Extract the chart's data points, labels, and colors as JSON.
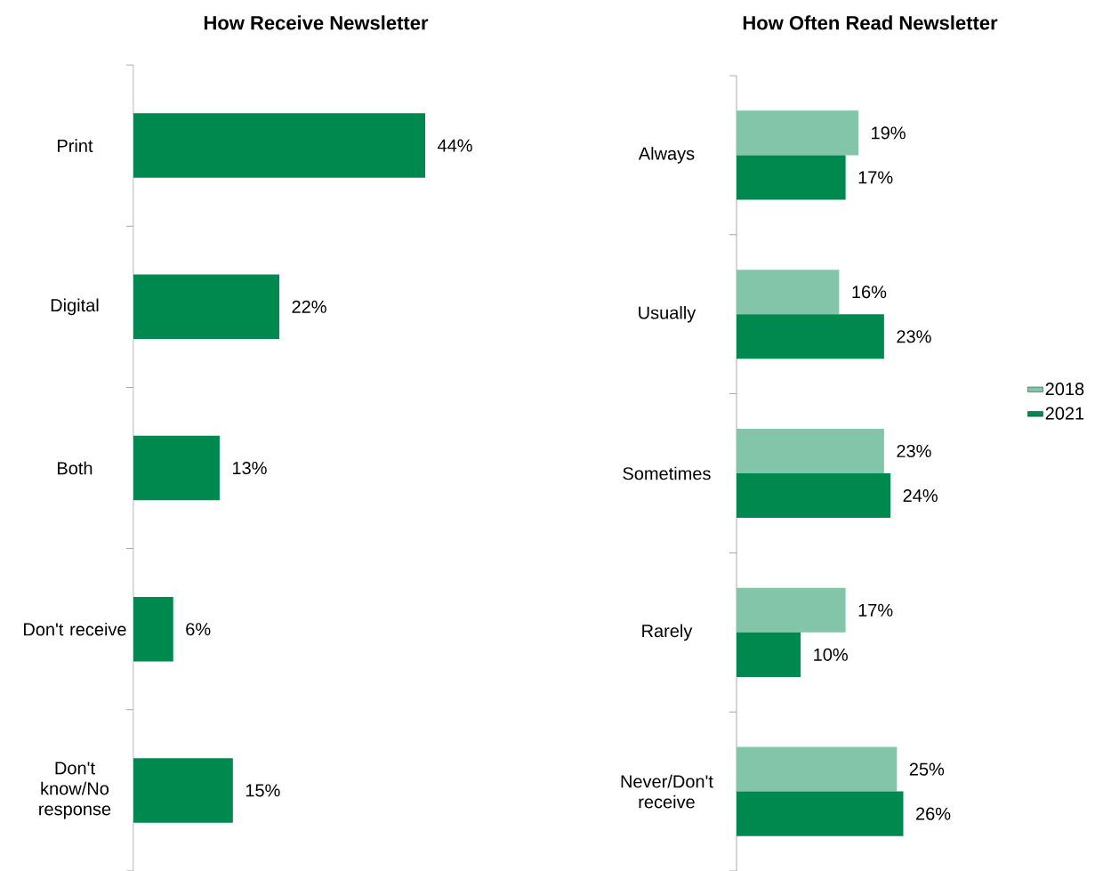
{
  "chart_data": [
    {
      "type": "bar",
      "orientation": "horizontal",
      "title": "How Receive Newsletter",
      "categories": [
        "Print",
        "Digital",
        "Both",
        "Don't receive",
        "Don't know/No response"
      ],
      "values": [
        44,
        22,
        13,
        6,
        15
      ],
      "color": "#00894f",
      "value_labels": [
        "44%",
        "22%",
        "13%",
        "6%",
        "15%"
      ]
    },
    {
      "type": "bar",
      "orientation": "horizontal",
      "title": "How Often Read Newsletter",
      "categories": [
        "Always",
        "Usually",
        "Sometimes",
        "Rarely",
        "Never/Don't receive"
      ],
      "legend": "right",
      "series": [
        {
          "name": "2018",
          "color": "#83c5a9",
          "values": [
            19,
            16,
            23,
            17,
            25
          ],
          "value_labels": [
            "19%",
            "16%",
            "23%",
            "17%",
            "25%"
          ]
        },
        {
          "name": "2021",
          "color": "#00894f",
          "values": [
            17,
            23,
            24,
            10,
            26
          ],
          "value_labels": [
            "17%",
            "23%",
            "24%",
            "10%",
            "26%"
          ]
        }
      ]
    }
  ]
}
